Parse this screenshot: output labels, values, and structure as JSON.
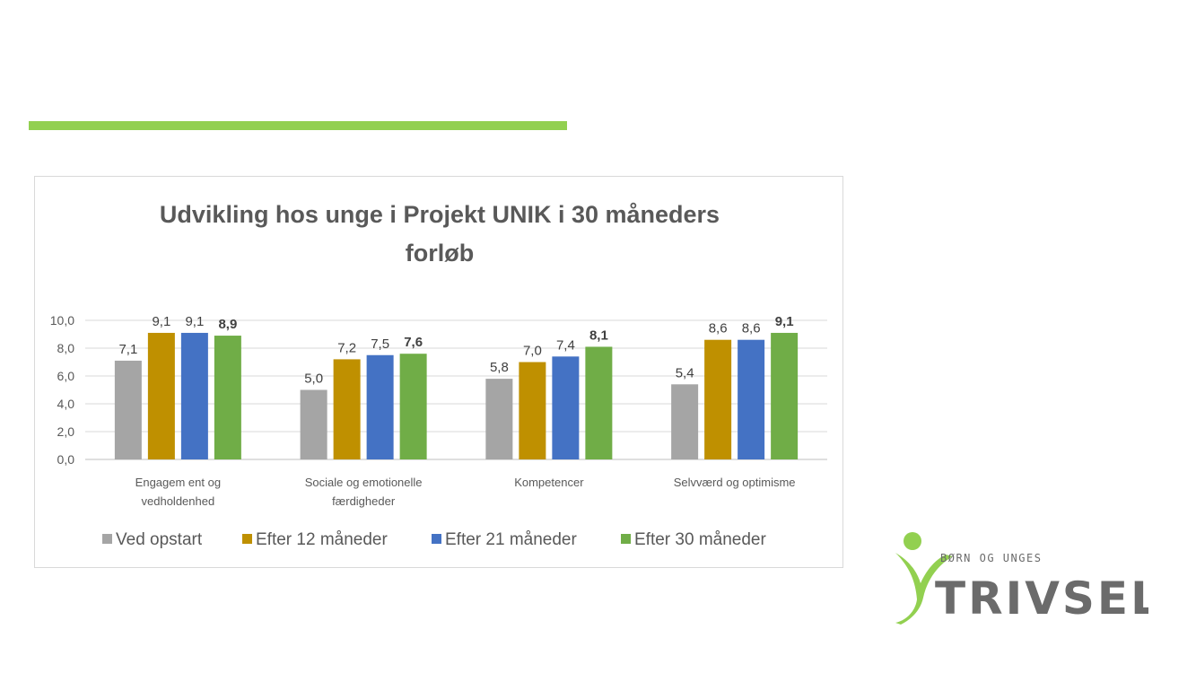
{
  "chart_data": {
    "type": "bar",
    "title_lines": [
      "Udvikling hos unge i Projekt UNIK i 30 måneders",
      "forløb"
    ],
    "categories": [
      [
        "Engagem ent og",
        "vedholdenhed"
      ],
      [
        "Sociale og emotionelle",
        "færdigheder"
      ],
      [
        "Kompetencer"
      ],
      [
        "Selvværd og optimisme"
      ]
    ],
    "series": [
      {
        "name": "Ved opstart",
        "color": "#a5a5a5",
        "values": [
          7.1,
          5.0,
          5.8,
          5.4
        ],
        "labels": [
          "7,1",
          "5,0",
          "5,8",
          "5,4"
        ],
        "bold_labels": false
      },
      {
        "name": "Efter 12 måneder",
        "color": "#bf9000",
        "values": [
          9.1,
          7.2,
          7.0,
          8.6
        ],
        "labels": [
          "9,1",
          "7,2",
          "7,0",
          "8,6"
        ],
        "bold_labels": false
      },
      {
        "name": "Efter 21 måneder",
        "color": "#4472c4",
        "values": [
          9.1,
          7.5,
          7.4,
          8.6
        ],
        "labels": [
          "9,1",
          "7,5",
          "7,4",
          "8,6"
        ],
        "bold_labels": false
      },
      {
        "name": "Efter 30 måneder",
        "color": "#70ad47",
        "values": [
          8.9,
          7.6,
          8.1,
          9.1
        ],
        "labels": [
          "8,9",
          "7,6",
          "8,1",
          "9,1"
        ],
        "bold_labels": true
      }
    ],
    "y_ticks": [
      "0,0",
      "2,0",
      "4,0",
      "6,0",
      "8,0",
      "10,0"
    ],
    "ylim": [
      0,
      10
    ],
    "grid": true,
    "legend": "bottom"
  },
  "logo": {
    "top_text": "BØRN OG UNGES",
    "main_text": "TRIVSEL"
  }
}
